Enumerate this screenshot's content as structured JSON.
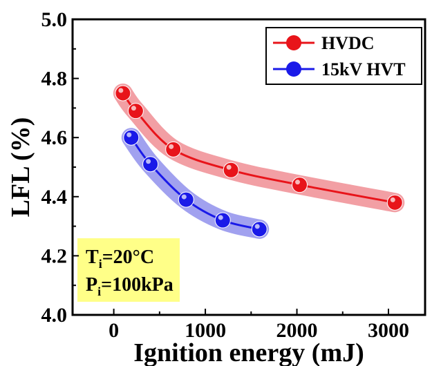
{
  "chart_data": {
    "type": "line",
    "xlabel": "Ignition energy (mJ)",
    "ylabel": "LFL (%)",
    "xlim": [
      -450,
      3400
    ],
    "ylim": [
      4.0,
      5.0
    ],
    "x_ticks": [
      "0",
      "1000",
      "2000",
      "3000"
    ],
    "y_ticks": [
      "4.0",
      "4.2",
      "4.4",
      "4.6",
      "4.8",
      "5.0"
    ],
    "grid": false,
    "legend_position": "top-right",
    "series": [
      {
        "name": "HVDC",
        "color": "#e8141a",
        "band_color": "#ee7f86",
        "x": [
          100,
          240,
          650,
          1280,
          2030,
          3070
        ],
        "y": [
          4.75,
          4.69,
          4.56,
          4.49,
          4.44,
          4.38
        ]
      },
      {
        "name": "15kV HVT",
        "color": "#1a1ae8",
        "band_color": "#8282ea",
        "x": [
          190,
          400,
          790,
          1190,
          1590
        ],
        "y": [
          4.6,
          4.51,
          4.39,
          4.32,
          4.29
        ]
      }
    ],
    "conditions": {
      "line1": {
        "symbol": "T",
        "sub": "i",
        "value": "=20°C"
      },
      "line2": {
        "symbol": "P",
        "sub": "i",
        "value": "=100kPa"
      },
      "box_color": "#ffff88"
    }
  }
}
